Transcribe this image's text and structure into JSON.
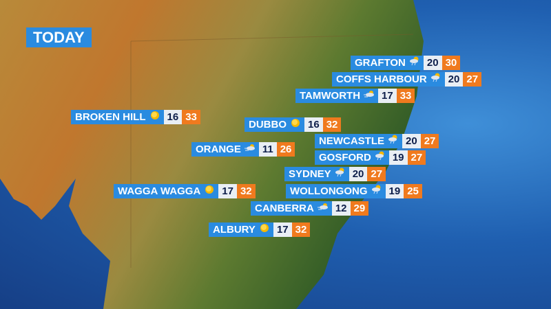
{
  "title": "TODAY",
  "colors": {
    "label_blue": "#2a8be0",
    "max_orange": "#f07a1e",
    "min_bg": "#e9eef4",
    "min_text": "#0d1e4a"
  },
  "locations": [
    {
      "name": "GRAFTON",
      "icon": "showers-icon",
      "min": "20",
      "max": "30"
    },
    {
      "name": "COFFS HARBOUR",
      "icon": "showers-icon",
      "min": "20",
      "max": "27"
    },
    {
      "name": "TAMWORTH",
      "icon": "windy-cloud-icon",
      "min": "17",
      "max": "33"
    },
    {
      "name": "BROKEN HILL",
      "icon": "sun-icon",
      "min": "16",
      "max": "33"
    },
    {
      "name": "DUBBO",
      "icon": "sun-icon",
      "min": "16",
      "max": "32"
    },
    {
      "name": "NEWCASTLE",
      "icon": "showers-icon",
      "min": "20",
      "max": "27"
    },
    {
      "name": "ORANGE",
      "icon": "windy-cloud-icon",
      "min": "11",
      "max": "26"
    },
    {
      "name": "GOSFORD",
      "icon": "showers-icon",
      "min": "19",
      "max": "27"
    },
    {
      "name": "SYDNEY",
      "icon": "showers-icon",
      "min": "20",
      "max": "27"
    },
    {
      "name": "WAGGA WAGGA",
      "icon": "sun-icon",
      "min": "17",
      "max": "32"
    },
    {
      "name": "WOLLONGONG",
      "icon": "showers-icon",
      "min": "19",
      "max": "25"
    },
    {
      "name": "CANBERRA",
      "icon": "windy-cloud-icon",
      "min": "12",
      "max": "29"
    },
    {
      "name": "ALBURY",
      "icon": "sun-icon",
      "min": "17",
      "max": "32"
    }
  ]
}
